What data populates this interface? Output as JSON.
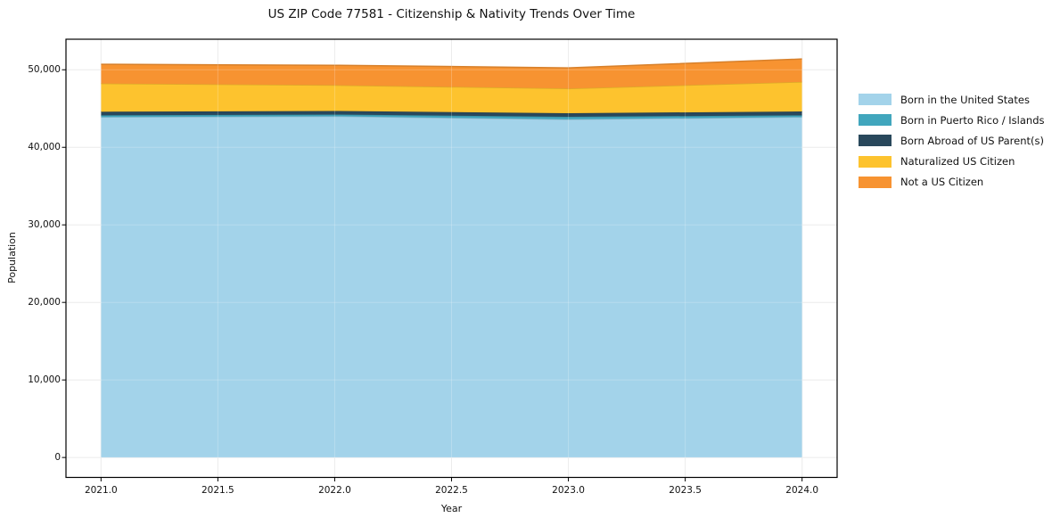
{
  "chart_data": {
    "type": "area",
    "stacked": true,
    "title": "US ZIP Code 77581 - Citizenship & Nativity Trends Over Time",
    "xlabel": "Year",
    "ylabel": "Population",
    "x": [
      2021,
      2022,
      2023,
      2024
    ],
    "series": [
      {
        "name": "Born in the United States",
        "color": "#a3d3ea",
        "values": [
          43900,
          44000,
          43600,
          43900
        ]
      },
      {
        "name": "Born in Puerto Rico / Islands",
        "color": "#41a6bd",
        "values": [
          230,
          230,
          340,
          230
        ]
      },
      {
        "name": "Born Abroad of US Parent(s)",
        "color": "#29485c",
        "values": [
          460,
          460,
          460,
          490
        ]
      },
      {
        "name": "Naturalized US Citizen",
        "color": "#fdc32e",
        "values": [
          3640,
          3330,
          3180,
          3820
        ]
      },
      {
        "name": "Not a US Citizen",
        "color": "#f79331",
        "values": [
          2480,
          2560,
          2670,
          2950
        ]
      }
    ],
    "xlim": [
      2020.85,
      2024.15
    ],
    "ylim": [
      -2570,
      53940
    ],
    "xticks": {
      "values": [
        2021.0,
        2021.5,
        2022.0,
        2022.5,
        2023.0,
        2023.5,
        2024.0
      ],
      "labels": [
        "2021.0",
        "2021.5",
        "2022.0",
        "2022.5",
        "2023.0",
        "2023.5",
        "2024.0"
      ]
    },
    "yticks": {
      "values": [
        0,
        10000,
        20000,
        30000,
        40000,
        50000
      ],
      "labels": [
        "0",
        "10,000",
        "20,000",
        "30,000",
        "40,000",
        "50,000"
      ]
    },
    "grid": true,
    "legend_position": "right-outside",
    "style": {
      "grid_color": "#e7e7e7",
      "frame_color": "#000000",
      "background": "#ffffff"
    }
  }
}
